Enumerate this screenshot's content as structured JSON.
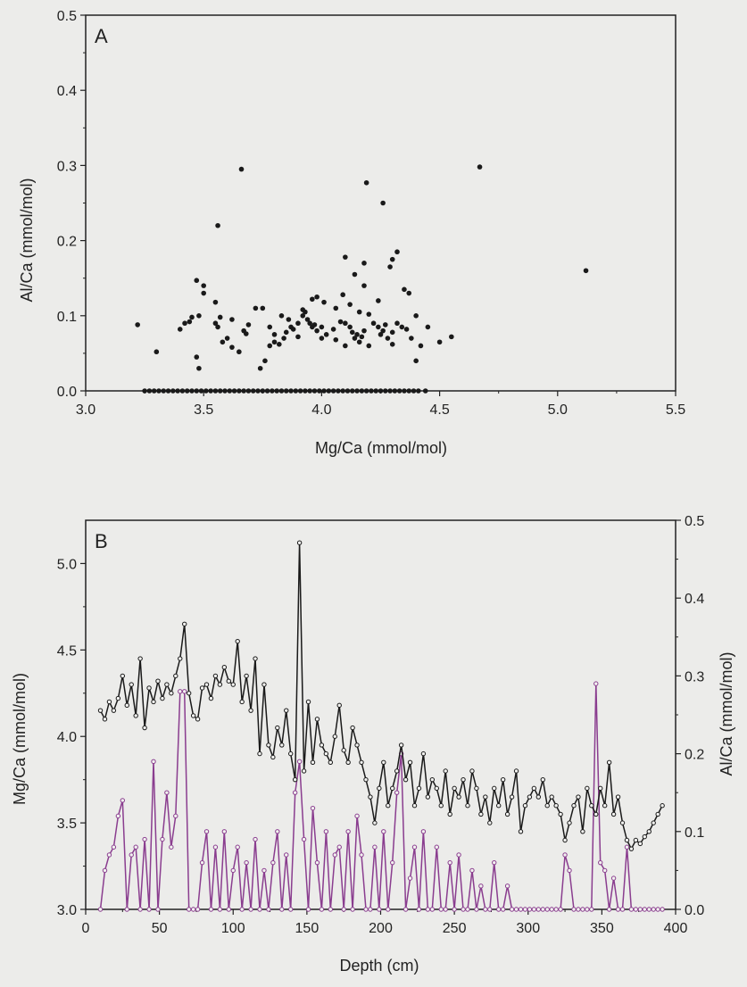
{
  "chart_data": [
    {
      "panel_label": "A",
      "type": "scatter",
      "xlabel": "Mg/Ca (mmol/mol)",
      "ylabel": "Al/Ca (mmol/mol)",
      "xlim": [
        3.0,
        5.5
      ],
      "ylim": [
        0.0,
        0.5
      ],
      "xticks": [
        "3.0",
        "3.5",
        "4.0",
        "4.5",
        "5.0",
        "5.5"
      ],
      "yticks": [
        "0.0",
        "0.1",
        "0.2",
        "0.3",
        "0.4",
        "0.5"
      ],
      "grid": false,
      "point_color": "#1a1a1a",
      "series": [
        {
          "x": [
            3.22,
            3.3,
            3.4,
            3.42,
            3.44,
            3.47,
            3.48,
            3.5,
            3.55,
            3.56,
            3.57,
            3.6,
            3.62,
            3.65,
            3.67,
            3.68,
            3.72,
            3.74,
            3.76,
            3.78,
            3.8,
            3.8,
            3.82,
            3.84,
            3.85,
            3.87,
            3.88,
            3.9,
            3.9,
            3.92,
            3.93,
            3.94,
            3.95,
            3.96,
            3.97,
            3.98,
            4.0,
            4.0,
            4.02,
            4.05,
            4.06,
            4.08,
            4.1,
            4.1,
            4.12,
            4.13,
            4.14,
            4.15,
            4.16,
            4.17,
            4.18,
            4.2,
            4.22,
            4.24,
            4.25,
            4.26,
            4.27,
            4.28,
            4.3,
            4.3,
            4.32,
            4.34,
            4.36,
            4.38,
            4.4,
            4.42,
            4.45,
            4.5,
            4.55,
            3.66,
            4.19,
            4.26,
            4.18,
            3.56,
            4.67,
            5.12,
            3.47,
            3.5,
            3.55,
            3.48,
            3.58,
            4.1,
            4.14,
            4.18,
            4.32,
            4.35,
            4.37,
            4.2,
            4.24,
            4.29,
            4.3,
            3.98,
            3.96,
            4.09,
            4.12,
            4.16,
            3.83,
            3.86,
            3.92,
            4.01,
            4.06,
            3.75,
            3.78,
            3.62,
            3.69,
            3.45,
            4.4
          ],
          "y": [
            0.088,
            0.052,
            0.082,
            0.09,
            0.092,
            0.045,
            0.03,
            0.14,
            0.118,
            0.085,
            0.098,
            0.07,
            0.058,
            0.052,
            0.08,
            0.076,
            0.11,
            0.03,
            0.04,
            0.06,
            0.065,
            0.075,
            0.062,
            0.07,
            0.078,
            0.085,
            0.082,
            0.072,
            0.09,
            0.1,
            0.105,
            0.095,
            0.09,
            0.085,
            0.088,
            0.08,
            0.085,
            0.07,
            0.075,
            0.082,
            0.068,
            0.092,
            0.06,
            0.09,
            0.085,
            0.078,
            0.07,
            0.075,
            0.065,
            0.072,
            0.08,
            0.06,
            0.09,
            0.085,
            0.075,
            0.08,
            0.088,
            0.07,
            0.078,
            0.062,
            0.09,
            0.085,
            0.082,
            0.07,
            0.04,
            0.06,
            0.085,
            0.065,
            0.072,
            0.295,
            0.277,
            0.25,
            0.17,
            0.22,
            0.298,
            0.16,
            0.147,
            0.13,
            0.09,
            0.1,
            0.065,
            0.178,
            0.155,
            0.14,
            0.185,
            0.135,
            0.13,
            0.102,
            0.12,
            0.165,
            0.175,
            0.125,
            0.122,
            0.128,
            0.115,
            0.105,
            0.1,
            0.095,
            0.108,
            0.118,
            0.11,
            0.11,
            0.085,
            0.095,
            0.088,
            0.098,
            0.1
          ],
          "note_zero_points": "many points at Al/Ca = 0.0 spanning Mg/Ca 3.25–4.45"
        },
        {
          "x": [
            3.25,
            3.27,
            3.29,
            3.31,
            3.33,
            3.35,
            3.37,
            3.39,
            3.41,
            3.43,
            3.45,
            3.47,
            3.49,
            3.51,
            3.53,
            3.55,
            3.57,
            3.59,
            3.61,
            3.63,
            3.65,
            3.67,
            3.69,
            3.71,
            3.73,
            3.75,
            3.77,
            3.79,
            3.81,
            3.83,
            3.85,
            3.87,
            3.89,
            3.91,
            3.93,
            3.95,
            3.97,
            3.99,
            4.01,
            4.03,
            4.05,
            4.07,
            4.09,
            4.11,
            4.13,
            4.15,
            4.17,
            4.19,
            4.21,
            4.23,
            4.25,
            4.27,
            4.29,
            4.31,
            4.33,
            4.35,
            4.37,
            4.39,
            4.41,
            4.44
          ],
          "y": [
            0,
            0,
            0,
            0,
            0,
            0,
            0,
            0,
            0,
            0,
            0,
            0,
            0,
            0,
            0,
            0,
            0,
            0,
            0,
            0,
            0,
            0,
            0,
            0,
            0,
            0,
            0,
            0,
            0,
            0,
            0,
            0,
            0,
            0,
            0,
            0,
            0,
            0,
            0,
            0,
            0,
            0,
            0,
            0,
            0,
            0,
            0,
            0,
            0,
            0,
            0,
            0,
            0,
            0,
            0,
            0,
            0,
            0,
            0,
            0
          ]
        }
      ]
    },
    {
      "panel_label": "B",
      "type": "line",
      "xlabel": "Depth (cm)",
      "ylabel_left": "Mg/Ca (mmol/mol)",
      "ylabel_right": "Al/Ca (mmol/mol)",
      "xlim": [
        0,
        400
      ],
      "ylim_left": [
        3.0,
        5.25
      ],
      "ylim_right": [
        0.0,
        0.5
      ],
      "xticks": [
        "0",
        "50",
        "100",
        "150",
        "200",
        "250",
        "300",
        "350",
        "400"
      ],
      "yticks_left": [
        "3.0",
        "3.5",
        "4.0",
        "4.5",
        "5.0"
      ],
      "yticks_right": [
        "0.0",
        "0.1",
        "0.2",
        "0.3",
        "0.4",
        "0.5"
      ],
      "grid": false,
      "series": [
        {
          "axis": "left",
          "color": "#1a1a1a",
          "x": [
            10,
            13,
            16,
            19,
            22,
            25,
            28,
            31,
            34,
            37,
            40,
            43,
            46,
            49,
            52,
            55,
            58,
            61,
            64,
            67,
            70,
            73,
            76,
            79,
            82,
            85,
            88,
            91,
            94,
            97,
            100,
            103,
            106,
            109,
            112,
            115,
            118,
            121,
            124,
            127,
            130,
            133,
            136,
            139,
            142,
            145,
            148,
            151,
            154,
            157,
            160,
            163,
            166,
            169,
            172,
            175,
            178,
            181,
            184,
            187,
            190,
            193,
            196,
            199,
            202,
            205,
            208,
            211,
            214,
            217,
            220,
            223,
            226,
            229,
            232,
            235,
            238,
            241,
            244,
            247,
            250,
            253,
            256,
            259,
            262,
            265,
            268,
            271,
            274,
            277,
            280,
            283,
            286,
            289,
            292,
            295,
            298,
            301,
            304,
            307,
            310,
            313,
            316,
            319,
            322,
            325,
            328,
            331,
            334,
            337,
            340,
            343,
            346,
            349,
            352,
            355,
            358,
            361,
            364,
            367,
            370,
            373,
            376,
            379,
            382,
            385,
            388,
            391
          ],
          "y": [
            4.15,
            4.1,
            4.2,
            4.15,
            4.22,
            4.35,
            4.18,
            4.3,
            4.12,
            4.45,
            4.05,
            4.28,
            4.2,
            4.32,
            4.22,
            4.3,
            4.25,
            4.35,
            4.45,
            4.65,
            4.25,
            4.12,
            4.1,
            4.28,
            4.3,
            4.22,
            4.35,
            4.3,
            4.4,
            4.32,
            4.3,
            4.55,
            4.2,
            4.35,
            4.15,
            4.45,
            3.9,
            4.3,
            3.95,
            3.88,
            4.05,
            3.95,
            4.15,
            3.9,
            3.75,
            5.12,
            3.8,
            4.2,
            3.85,
            4.1,
            3.95,
            3.9,
            3.85,
            4.0,
            4.18,
            3.92,
            3.85,
            4.05,
            3.95,
            3.85,
            3.75,
            3.65,
            3.5,
            3.7,
            3.85,
            3.6,
            3.7,
            3.8,
            3.95,
            3.75,
            3.85,
            3.6,
            3.7,
            3.9,
            3.65,
            3.75,
            3.7,
            3.6,
            3.8,
            3.55,
            3.7,
            3.65,
            3.75,
            3.6,
            3.8,
            3.7,
            3.55,
            3.65,
            3.5,
            3.7,
            3.6,
            3.75,
            3.55,
            3.65,
            3.8,
            3.45,
            3.6,
            3.65,
            3.7,
            3.65,
            3.75,
            3.6,
            3.65,
            3.6,
            3.55,
            3.4,
            3.5,
            3.6,
            3.65,
            3.45,
            3.7,
            3.6,
            3.55,
            3.7,
            3.6,
            3.85,
            3.55,
            3.65,
            3.5,
            3.4,
            3.35,
            3.4,
            3.38,
            3.42,
            3.45,
            3.5,
            3.55,
            3.6
          ]
        },
        {
          "axis": "right",
          "color": "#8a3d8f",
          "x": [
            10,
            13,
            16,
            19,
            22,
            25,
            28,
            31,
            34,
            37,
            40,
            43,
            46,
            49,
            52,
            55,
            58,
            61,
            64,
            67,
            70,
            73,
            76,
            79,
            82,
            85,
            88,
            91,
            94,
            97,
            100,
            103,
            106,
            109,
            112,
            115,
            118,
            121,
            124,
            127,
            130,
            133,
            136,
            139,
            142,
            145,
            148,
            151,
            154,
            157,
            160,
            163,
            166,
            169,
            172,
            175,
            178,
            181,
            184,
            187,
            190,
            193,
            196,
            199,
            202,
            205,
            208,
            211,
            214,
            217,
            220,
            223,
            226,
            229,
            232,
            235,
            238,
            241,
            244,
            247,
            250,
            253,
            256,
            259,
            262,
            265,
            268,
            271,
            274,
            277,
            280,
            283,
            286,
            289,
            292,
            295,
            298,
            301,
            304,
            307,
            310,
            313,
            316,
            319,
            322,
            325,
            328,
            331,
            334,
            337,
            340,
            343,
            346,
            349,
            352,
            355,
            358,
            361,
            364,
            367,
            370,
            373,
            376,
            379,
            382,
            385,
            388,
            391
          ],
          "y": [
            0.0,
            0.05,
            0.07,
            0.08,
            0.12,
            0.14,
            0.0,
            0.07,
            0.08,
            0.0,
            0.09,
            0.0,
            0.19,
            0.0,
            0.09,
            0.15,
            0.08,
            0.12,
            0.28,
            0.28,
            0.0,
            0.0,
            0.0,
            0.06,
            0.1,
            0.0,
            0.08,
            0.0,
            0.1,
            0.0,
            0.05,
            0.08,
            0.0,
            0.06,
            0.0,
            0.09,
            0.0,
            0.05,
            0.0,
            0.06,
            0.1,
            0.0,
            0.07,
            0.0,
            0.15,
            0.19,
            0.09,
            0.0,
            0.13,
            0.06,
            0.0,
            0.1,
            0.0,
            0.07,
            0.08,
            0.0,
            0.1,
            0.0,
            0.12,
            0.07,
            0.0,
            0.0,
            0.08,
            0.0,
            0.1,
            0.0,
            0.06,
            0.15,
            0.2,
            0.0,
            0.04,
            0.08,
            0.0,
            0.1,
            0.0,
            0.0,
            0.08,
            0.0,
            0.0,
            0.06,
            0.0,
            0.07,
            0.0,
            0.0,
            0.05,
            0.0,
            0.03,
            0.0,
            0.0,
            0.06,
            0.0,
            0.0,
            0.03,
            0.0,
            0.0,
            0.0,
            0.0,
            0.0,
            0.0,
            0.0,
            0.0,
            0.0,
            0.0,
            0.0,
            0.0,
            0.07,
            0.05,
            0.0,
            0.0,
            0.0,
            0.0,
            0.0,
            0.29,
            0.06,
            0.05,
            0.0,
            0.04,
            0.0,
            0.0,
            0.08,
            0.0,
            0.0,
            0.0,
            0.0,
            0.0,
            0.0,
            0.0,
            0.0
          ]
        }
      ]
    }
  ]
}
